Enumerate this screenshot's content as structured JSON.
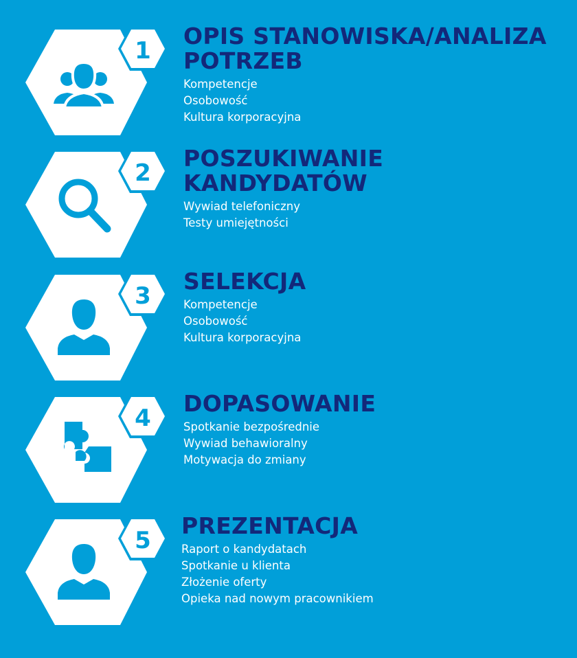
{
  "colors": {
    "background": "#019fd9",
    "title": "#13287a",
    "hexagon": "#ffffff",
    "icon": "#019fd9"
  },
  "steps": [
    {
      "number": "1",
      "icon": "group-icon",
      "title_lines": [
        "OPIS STANOWISKA/ANALIZA",
        "POTRZEB"
      ],
      "items": [
        "Kompetencje",
        "Osobowość",
        "Kultura korporacyjna"
      ]
    },
    {
      "number": "2",
      "icon": "magnifier-icon",
      "title_lines": [
        "POSZUKIWANIE",
        "KANDYDATÓW"
      ],
      "items": [
        "Wywiad telefoniczny",
        "Testy umiejętności"
      ]
    },
    {
      "number": "3",
      "icon": "person-icon",
      "title_lines": [
        "SELEKCJA"
      ],
      "items": [
        "Kompetencje",
        "Osobowość",
        "Kultura korporacyjna"
      ]
    },
    {
      "number": "4",
      "icon": "puzzle-icon",
      "title_lines": [
        "DOPASOWANIE"
      ],
      "items": [
        "Spotkanie bezpośrednie",
        "Wywiad behawioralny",
        "Motywacja do zmiany"
      ]
    },
    {
      "number": "5",
      "icon": "person-icon",
      "title_lines": [
        "PREZENTACJA"
      ],
      "items": [
        "Raport o kandydatach",
        "Spotkanie u klienta",
        "Złożenie oferty",
        "Opieka nad nowym pracownikiem"
      ]
    }
  ]
}
